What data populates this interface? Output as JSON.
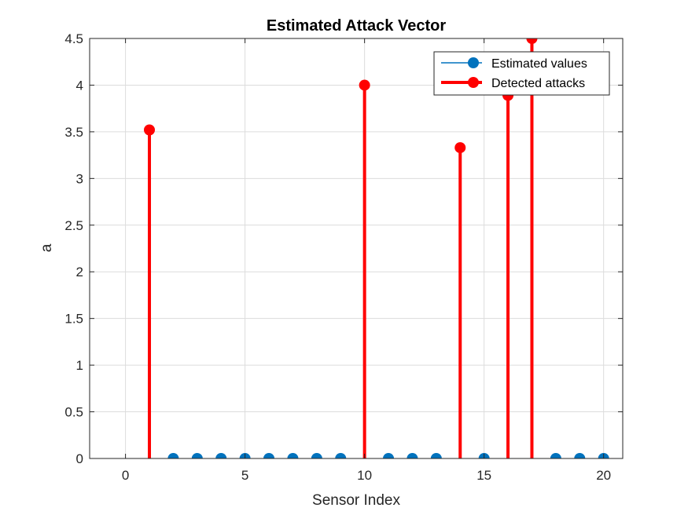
{
  "chart_data": {
    "type": "stem",
    "title": "Estimated Attack Vector",
    "xlabel": "Sensor Index",
    "ylabel": "a",
    "xlim": [
      -1.5,
      20.8
    ],
    "ylim": [
      0,
      4.5
    ],
    "xticks": [
      0,
      5,
      10,
      15,
      20
    ],
    "yticks": [
      0,
      0.5,
      1,
      1.5,
      2,
      2.5,
      3,
      3.5,
      4,
      4.5
    ],
    "xtick_labels": [
      "0",
      "5",
      "10",
      "15",
      "20"
    ],
    "ytick_labels": [
      "0",
      "0.5",
      "1",
      "1.5",
      "2",
      "2.5",
      "3",
      "3.5",
      "4",
      "4.5"
    ],
    "grid": true,
    "legend_position": "top-right",
    "series": [
      {
        "name": "Estimated values",
        "color": "#0072BD",
        "x": [
          2,
          3,
          4,
          5,
          6,
          7,
          8,
          9,
          11,
          12,
          13,
          15,
          18,
          19,
          20
        ],
        "y": [
          0,
          0,
          0,
          0,
          0,
          0,
          0,
          0,
          0,
          0,
          0,
          0,
          0,
          0,
          0
        ]
      },
      {
        "name": "Detected attacks",
        "color": "#FF0000",
        "x": [
          1,
          10,
          14,
          16,
          17
        ],
        "y": [
          3.52,
          4.0,
          3.33,
          3.89,
          4.5
        ]
      }
    ]
  }
}
